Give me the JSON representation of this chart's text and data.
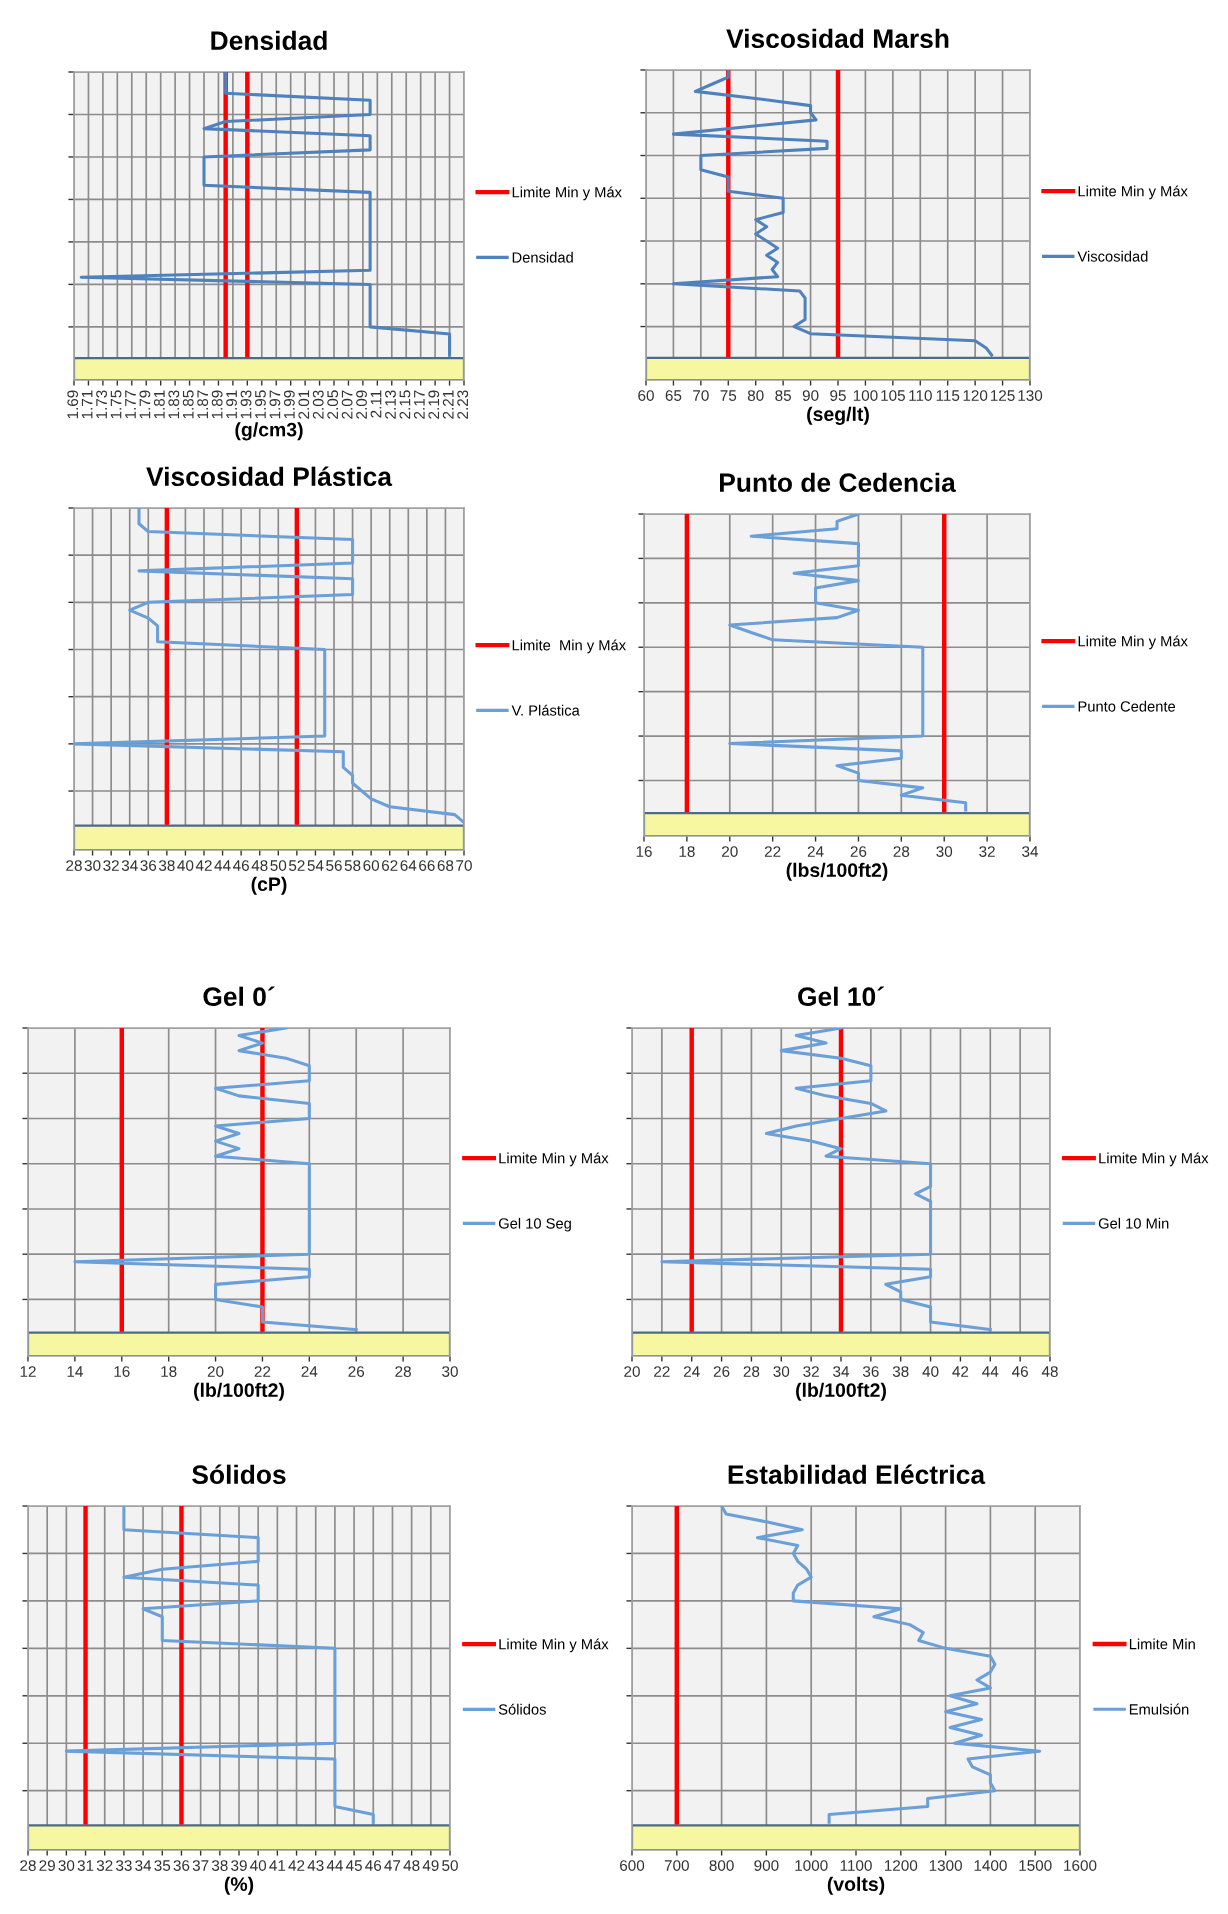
{
  "chart_data": [
    {
      "type": "line",
      "title": "Densidad",
      "xlabel": "(g/cm3)",
      "orientation": "horizontal",
      "categories": [
        null,
        null,
        null,
        null,
        null,
        null,
        null,
        null,
        null,
        null,
        null,
        null,
        null,
        null,
        null,
        null,
        null,
        null,
        null,
        null,
        null,
        null,
        null,
        null,
        null,
        null,
        null,
        null,
        null,
        null,
        null,
        null,
        null,
        null,
        null,
        null,
        null,
        null,
        null,
        null,
        null
      ],
      "series": [
        {
          "name": "Limite Min y Máx",
          "color": "#ff0000",
          "values": [
            1.9,
            1.9,
            1.9,
            1.9,
            1.9,
            1.9,
            1.9,
            1.9,
            1.9,
            1.9,
            1.9,
            1.9,
            1.9,
            1.9,
            1.9,
            1.9,
            1.9,
            1.9,
            1.9,
            1.9,
            1.9,
            1.9,
            1.9,
            1.9,
            1.9,
            1.9,
            1.9,
            1.9,
            1.9,
            1.9,
            1.9,
            1.9,
            1.9,
            1.9,
            1.9,
            1.9,
            1.9,
            1.9,
            1.9,
            1.9,
            1.9
          ]
        },
        {
          "color": "#ff0000",
          "values": [
            1.93,
            1.93,
            1.93,
            1.93,
            1.93,
            1.93,
            1.93,
            1.93,
            1.93,
            1.93,
            1.93,
            1.93,
            1.93,
            1.93,
            1.93,
            1.93,
            1.93,
            1.93,
            1.93,
            1.93,
            1.93,
            1.93,
            1.93,
            1.93,
            1.93,
            1.93,
            1.93,
            1.93,
            1.93,
            1.93,
            1.93,
            1.93,
            1.93,
            1.93,
            1.93,
            1.93,
            1.93,
            1.93,
            1.93,
            1.93,
            1.93
          ]
        },
        {
          "name": "Densidad",
          "color": "#4f81bd",
          "values": [
            1.9,
            1.9,
            1.9,
            1.9,
            2.1,
            2.1,
            2.1,
            1.9,
            1.87,
            2.1,
            2.1,
            2.1,
            1.87,
            1.87,
            1.87,
            1.87,
            1.87,
            2.1,
            2.1,
            2.1,
            2.1,
            2.1,
            2.1,
            2.1,
            2.1,
            2.1,
            2.1,
            2.1,
            2.1,
            1.7,
            2.1,
            2.1,
            2.1,
            2.1,
            2.1,
            2.1,
            2.1,
            2.21,
            2.21,
            2.21,
            2.21
          ]
        }
      ],
      "xlim": [
        1.69,
        2.23
      ],
      "xticks": [
        1.69,
        1.71,
        1.73,
        1.75,
        1.77,
        1.79,
        1.81,
        1.83,
        1.85,
        1.87,
        1.89,
        1.91,
        1.93,
        1.95,
        1.97,
        1.99,
        2.01,
        2.03,
        2.05,
        2.07,
        2.09,
        2.11,
        2.13,
        2.15,
        2.17,
        2.19,
        2.21,
        2.23
      ],
      "grid": true,
      "legend": "right",
      "tick_labels": "x"
    },
    {
      "type": "line",
      "title": "Viscosidad Marsh",
      "xlabel": "(seg/lt)",
      "orientation": "horizontal",
      "categories": [
        null,
        null,
        null,
        null,
        null,
        null,
        null,
        null,
        null,
        null,
        null,
        null,
        null,
        null,
        null,
        null,
        null,
        null,
        null,
        null,
        null,
        null,
        null,
        null,
        null,
        null,
        null,
        null,
        null,
        null,
        null,
        null,
        null,
        null,
        null,
        null,
        null,
        null,
        null,
        null,
        null
      ],
      "series": [
        {
          "name": "Limite Min y Máx",
          "color": "#ff0000",
          "values": [
            75,
            75,
            75,
            75,
            75,
            75,
            75,
            75,
            75,
            75,
            75,
            75,
            75,
            75,
            75,
            75,
            75,
            75,
            75,
            75,
            75,
            75,
            75,
            75,
            75,
            75,
            75,
            75,
            75,
            75,
            75,
            75,
            75,
            75,
            75,
            75,
            75,
            75,
            75,
            75,
            75
          ]
        },
        {
          "color": "#ff0000",
          "values": [
            95,
            95,
            95,
            95,
            95,
            95,
            95,
            95,
            95,
            95,
            95,
            95,
            95,
            95,
            95,
            95,
            95,
            95,
            95,
            95,
            95,
            95,
            95,
            95,
            95,
            95,
            95,
            95,
            95,
            95,
            95,
            95,
            95,
            95,
            95,
            95,
            95,
            95,
            95,
            95,
            95
          ]
        },
        {
          "name": "Viscosidad",
          "color": "#4f81bd",
          "values": [
            75,
            75,
            72,
            69,
            80,
            90,
            90,
            91,
            78,
            65,
            93,
            93,
            70,
            70,
            70,
            75,
            75,
            75,
            85,
            85,
            85,
            80,
            82,
            80,
            82,
            84,
            82,
            84,
            83,
            84,
            65,
            88,
            89,
            89,
            89,
            89,
            87,
            90,
            120,
            122,
            123
          ]
        }
      ],
      "xlim": [
        60,
        130
      ],
      "xticks": [
        60,
        65,
        70,
        75,
        80,
        85,
        90,
        95,
        100,
        105,
        110,
        115,
        120,
        125,
        130
      ],
      "grid": true,
      "legend": "right",
      "tick_labels": "x"
    },
    {
      "type": "line",
      "title": "Viscosidad Plástica",
      "xlabel": "(cP)",
      "orientation": "horizontal",
      "categories": [
        null,
        null,
        null,
        null,
        null,
        null,
        null,
        null,
        null,
        null,
        null,
        null,
        null,
        null,
        null,
        null,
        null,
        null,
        null,
        null,
        null,
        null,
        null,
        null,
        null,
        null,
        null,
        null,
        null,
        null,
        null,
        null,
        null,
        null,
        null,
        null,
        null,
        null,
        null,
        null,
        null
      ],
      "series": [
        {
          "name": "Limite  Min y Máx",
          "color": "#ff0000",
          "values": [
            38,
            38,
            38,
            38,
            38,
            38,
            38,
            38,
            38,
            38,
            38,
            38,
            38,
            38,
            38,
            38,
            38,
            38,
            38,
            38,
            38,
            38,
            38,
            38,
            38,
            38,
            38,
            38,
            38,
            38,
            38,
            38,
            38,
            38,
            38,
            38,
            38,
            38,
            38,
            38,
            38
          ]
        },
        {
          "color": "#ff0000",
          "values": [
            52,
            52,
            52,
            52,
            52,
            52,
            52,
            52,
            52,
            52,
            52,
            52,
            52,
            52,
            52,
            52,
            52,
            52,
            52,
            52,
            52,
            52,
            52,
            52,
            52,
            52,
            52,
            52,
            52,
            52,
            52,
            52,
            52,
            52,
            52,
            52,
            52,
            52,
            52,
            52,
            52
          ]
        },
        {
          "name": "V. Plástica",
          "color": "#6a9fd8",
          "values": [
            35,
            35,
            35,
            36,
            58,
            58,
            58,
            58,
            35,
            58,
            58,
            58,
            36,
            34,
            36,
            37,
            37,
            37,
            55,
            55,
            55,
            55,
            55,
            55,
            55,
            55,
            55,
            55,
            55,
            55,
            28,
            57,
            57,
            57,
            58,
            58,
            59,
            60,
            62,
            69,
            70
          ]
        }
      ],
      "xlim": [
        28,
        70
      ],
      "xticks": [
        28,
        30,
        32,
        34,
        36,
        38,
        40,
        42,
        44,
        46,
        48,
        50,
        52,
        54,
        56,
        58,
        60,
        62,
        64,
        66,
        68,
        70
      ],
      "grid": true,
      "legend": "right",
      "tick_labels": "x"
    },
    {
      "type": "line",
      "title": "Punto de Cedencia",
      "xlabel": "(lbs/100ft2)",
      "orientation": "horizontal",
      "categories": [
        null,
        null,
        null,
        null,
        null,
        null,
        null,
        null,
        null,
        null,
        null,
        null,
        null,
        null,
        null,
        null,
        null,
        null,
        null,
        null,
        null,
        null,
        null,
        null,
        null,
        null,
        null,
        null,
        null,
        null,
        null,
        null,
        null,
        null,
        null,
        null,
        null,
        null,
        null,
        null,
        null
      ],
      "series": [
        {
          "name": "Limite Min y Máx",
          "color": "#ff0000",
          "values": [
            18,
            18,
            18,
            18,
            18,
            18,
            18,
            18,
            18,
            18,
            18,
            18,
            18,
            18,
            18,
            18,
            18,
            18,
            18,
            18,
            18,
            18,
            18,
            18,
            18,
            18,
            18,
            18,
            18,
            18,
            18,
            18,
            18,
            18,
            18,
            18,
            18,
            18,
            18,
            18,
            18
          ]
        },
        {
          "color": "#ff0000",
          "values": [
            30,
            30,
            30,
            30,
            30,
            30,
            30,
            30,
            30,
            30,
            30,
            30,
            30,
            30,
            30,
            30,
            30,
            30,
            30,
            30,
            30,
            30,
            30,
            30,
            30,
            30,
            30,
            30,
            30,
            30,
            30,
            30,
            30,
            30,
            30,
            30,
            30,
            30,
            30,
            30,
            30
          ]
        },
        {
          "name": "Punto Cedente",
          "color": "#6a9fd8",
          "values": [
            26,
            25,
            25,
            21,
            26,
            26,
            26,
            26,
            23,
            26,
            24,
            24,
            24,
            26,
            25,
            20,
            21,
            22,
            29,
            29,
            29,
            29,
            29,
            29,
            29,
            29,
            29,
            29,
            29,
            29,
            29,
            20,
            28,
            28,
            25,
            26,
            26,
            29,
            28,
            31,
            31
          ]
        }
      ],
      "xlim": [
        16,
        34
      ],
      "xticks": [
        16,
        18,
        20,
        22,
        24,
        26,
        28,
        30,
        32,
        34
      ],
      "grid": true,
      "legend": "right",
      "tick_labels": "x"
    },
    {
      "type": "line",
      "title": "Gel 0´",
      "xlabel": "(lb/100ft2)",
      "orientation": "horizontal",
      "categories": [
        null,
        null,
        null,
        null,
        null,
        null,
        null,
        null,
        null,
        null,
        null,
        null,
        null,
        null,
        null,
        null,
        null,
        null,
        null,
        null,
        null,
        null,
        null,
        null,
        null,
        null,
        null,
        null,
        null,
        null,
        null,
        null,
        null,
        null,
        null,
        null,
        null,
        null,
        null,
        null,
        null
      ],
      "series": [
        {
          "name": "Limite Min y Máx",
          "color": "#ff0000",
          "values": [
            16,
            16,
            16,
            16,
            16,
            16,
            16,
            16,
            16,
            16,
            16,
            16,
            16,
            16,
            16,
            16,
            16,
            16,
            16,
            16,
            16,
            16,
            16,
            16,
            16,
            16,
            16,
            16,
            16,
            16,
            16,
            16,
            16,
            16,
            16,
            16,
            16,
            16,
            16,
            16,
            16
          ]
        },
        {
          "color": "#ff0000",
          "values": [
            22,
            22,
            22,
            22,
            22,
            22,
            22,
            22,
            22,
            22,
            22,
            22,
            22,
            22,
            22,
            22,
            22,
            22,
            22,
            22,
            22,
            22,
            22,
            22,
            22,
            22,
            22,
            22,
            22,
            22,
            22,
            22,
            22,
            22,
            22,
            22,
            22,
            22,
            22,
            22,
            22
          ]
        },
        {
          "name": "Gel 10 Seg",
          "color": "#6a9fd8",
          "values": [
            23,
            21,
            22,
            21,
            23,
            24,
            24,
            24,
            20,
            21,
            24,
            24,
            24,
            20,
            21,
            20,
            21,
            20,
            24,
            24,
            24,
            24,
            24,
            24,
            24,
            24,
            24,
            24,
            24,
            24,
            24,
            14,
            24,
            24,
            20,
            20,
            20,
            22,
            22,
            22,
            26
          ]
        }
      ],
      "xlim": [
        12,
        30
      ],
      "xticks": [
        12,
        14,
        16,
        18,
        20,
        22,
        24,
        26,
        28,
        30
      ],
      "grid": true,
      "legend": "right",
      "tick_labels": "x"
    },
    {
      "type": "line",
      "title": "Gel 10´",
      "xlabel": "(lb/100ft2)",
      "orientation": "horizontal",
      "categories": [
        null,
        null,
        null,
        null,
        null,
        null,
        null,
        null,
        null,
        null,
        null,
        null,
        null,
        null,
        null,
        null,
        null,
        null,
        null,
        null,
        null,
        null,
        null,
        null,
        null,
        null,
        null,
        null,
        null,
        null,
        null,
        null,
        null,
        null,
        null,
        null,
        null,
        null,
        null,
        null,
        null
      ],
      "series": [
        {
          "name": "Limite Min y Máx",
          "color": "#ff0000",
          "values": [
            24,
            24,
            24,
            24,
            24,
            24,
            24,
            24,
            24,
            24,
            24,
            24,
            24,
            24,
            24,
            24,
            24,
            24,
            24,
            24,
            24,
            24,
            24,
            24,
            24,
            24,
            24,
            24,
            24,
            24,
            24,
            24,
            24,
            24,
            24,
            24,
            24,
            24,
            24,
            24,
            24
          ]
        },
        {
          "color": "#ff0000",
          "values": [
            34,
            34,
            34,
            34,
            34,
            34,
            34,
            34,
            34,
            34,
            34,
            34,
            34,
            34,
            34,
            34,
            34,
            34,
            34,
            34,
            34,
            34,
            34,
            34,
            34,
            34,
            34,
            34,
            34,
            34,
            34,
            34,
            34,
            34,
            34,
            34,
            34,
            34,
            34,
            34,
            34
          ]
        },
        {
          "name": "Gel 10 Min",
          "color": "#6a9fd8",
          "values": [
            34,
            31,
            33,
            30,
            34,
            36,
            36,
            36,
            31,
            33,
            36,
            37,
            34,
            31,
            29,
            32,
            34,
            33,
            40,
            40,
            40,
            40,
            39,
            40,
            40,
            40,
            40,
            40,
            40,
            40,
            40,
            22,
            40,
            40,
            37,
            38,
            38,
            40,
            40,
            40,
            44
          ]
        }
      ],
      "xlim": [
        20,
        48
      ],
      "xticks": [
        20,
        22,
        24,
        26,
        28,
        30,
        32,
        34,
        36,
        38,
        40,
        42,
        44,
        46,
        48
      ],
      "grid": true,
      "legend": "right",
      "tick_labels": "x"
    },
    {
      "type": "line",
      "title": "Sólidos",
      "xlabel": "(%)",
      "orientation": "horizontal",
      "categories": [
        null,
        null,
        null,
        null,
        null,
        null,
        null,
        null,
        null,
        null,
        null,
        null,
        null,
        null,
        null,
        null,
        null,
        null,
        null,
        null,
        null,
        null,
        null,
        null,
        null,
        null,
        null,
        null,
        null,
        null,
        null,
        null,
        null,
        null,
        null,
        null,
        null,
        null,
        null,
        null,
        null
      ],
      "series": [
        {
          "name": "Limite Min y Máx",
          "color": "#ff0000",
          "values": [
            31,
            31,
            31,
            31,
            31,
            31,
            31,
            31,
            31,
            31,
            31,
            31,
            31,
            31,
            31,
            31,
            31,
            31,
            31,
            31,
            31,
            31,
            31,
            31,
            31,
            31,
            31,
            31,
            31,
            31,
            31,
            31,
            31,
            31,
            31,
            31,
            31,
            31,
            31,
            31,
            31
          ]
        },
        {
          "color": "#ff0000",
          "values": [
            36,
            36,
            36,
            36,
            36,
            36,
            36,
            36,
            36,
            36,
            36,
            36,
            36,
            36,
            36,
            36,
            36,
            36,
            36,
            36,
            36,
            36,
            36,
            36,
            36,
            36,
            36,
            36,
            36,
            36,
            36,
            36,
            36,
            36,
            36,
            36,
            36,
            36,
            36,
            36,
            36
          ]
        },
        {
          "name": "Sólidos",
          "color": "#6a9fd8",
          "values": [
            33,
            33,
            33,
            33,
            40,
            40,
            40,
            40,
            35,
            33,
            40,
            40,
            40,
            34,
            35,
            35,
            35,
            35,
            44,
            44,
            44,
            44,
            44,
            44,
            44,
            44,
            44,
            44,
            44,
            44,
            44,
            30,
            44,
            44,
            44,
            44,
            44,
            44,
            44,
            46,
            46
          ]
        }
      ],
      "xlim": [
        28,
        50
      ],
      "xticks": [
        28,
        29,
        30,
        31,
        32,
        33,
        34,
        35,
        36,
        37,
        38,
        39,
        40,
        41,
        42,
        43,
        44,
        45,
        46,
        47,
        48,
        49,
        50
      ],
      "grid": true,
      "legend": "right",
      "tick_labels": "x"
    },
    {
      "type": "line",
      "title": "Estabilidad Eléctrica",
      "xlabel": "(volts)",
      "orientation": "horizontal",
      "categories": [
        null,
        null,
        null,
        null,
        null,
        null,
        null,
        null,
        null,
        null,
        null,
        null,
        null,
        null,
        null,
        null,
        null,
        null,
        null,
        null,
        null,
        null,
        null,
        null,
        null,
        null,
        null,
        null,
        null,
        null,
        null,
        null,
        null,
        null,
        null,
        null,
        null,
        null,
        null,
        null,
        null
      ],
      "series": [
        {
          "name": "Limite Min",
          "color": "#ff0000",
          "values": [
            700,
            700,
            700,
            700,
            700,
            700,
            700,
            700,
            700,
            700,
            700,
            700,
            700,
            700,
            700,
            700,
            700,
            700,
            700,
            700,
            700,
            700,
            700,
            700,
            700,
            700,
            700,
            700,
            700,
            700,
            700,
            700,
            700,
            700,
            700,
            700,
            700,
            700,
            700,
            700,
            700
          ]
        },
        {
          "name": "Emulsión",
          "color": "#6a9fd8",
          "values": [
            800,
            810,
            900,
            980,
            880,
            970,
            960,
            970,
            990,
            1000,
            970,
            960,
            960,
            1200,
            1140,
            1220,
            1250,
            1240,
            1300,
            1400,
            1410,
            1400,
            1370,
            1400,
            1310,
            1370,
            1300,
            1380,
            1310,
            1380,
            1320,
            1510,
            1350,
            1360,
            1400,
            1400,
            1410,
            1260,
            1260,
            1040,
            1040
          ]
        }
      ],
      "xlim": [
        600,
        1600
      ],
      "xticks": [
        600,
        700,
        800,
        900,
        1000,
        1100,
        1200,
        1300,
        1400,
        1500,
        1600
      ],
      "grid": true,
      "legend": "right",
      "tick_labels": "x"
    }
  ]
}
